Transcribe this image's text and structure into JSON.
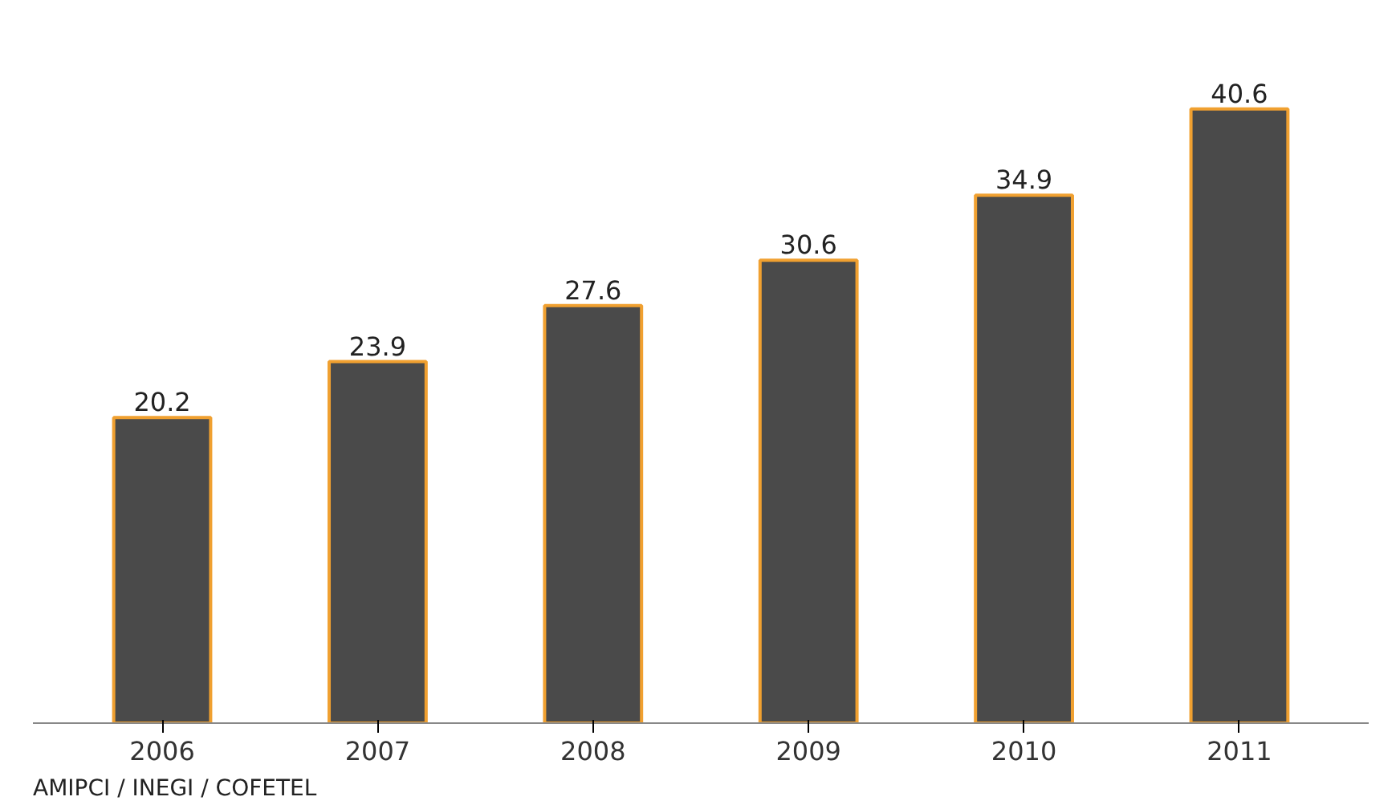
{
  "chart_data": {
    "type": "bar",
    "categories": [
      "2006",
      "2007",
      "2008",
      "2009",
      "2010",
      "2011"
    ],
    "values": [
      20.2,
      23.9,
      27.6,
      30.6,
      34.9,
      40.6
    ],
    "color": "#4a4a4a",
    "data_labels": true,
    "annotations": [
      "AMIPCI / INEGI / COFETEL"
    ]
  }
}
